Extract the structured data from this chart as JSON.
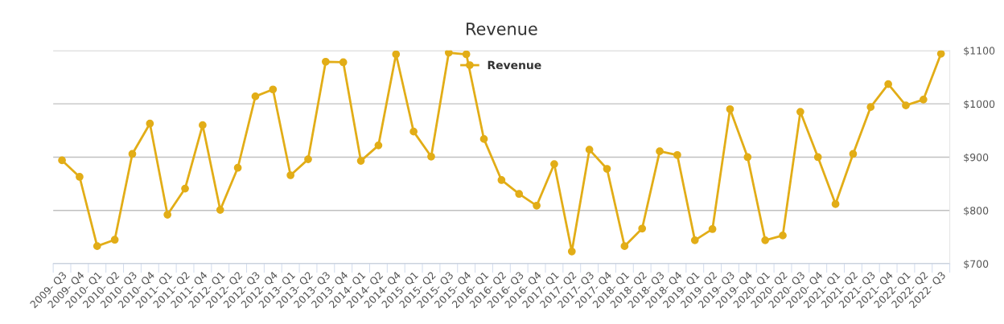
{
  "chart_data": {
    "type": "line",
    "title": "Revenue",
    "categories": [
      "2009- Q3",
      "2009- Q4",
      "2010- Q1",
      "2010- Q2",
      "2010- Q3",
      "2010- Q4",
      "2011- Q1",
      "2011- Q2",
      "2011- Q4",
      "2012- Q1",
      "2012- Q2",
      "2012- Q3",
      "2012- Q4",
      "2013- Q1",
      "2013- Q2",
      "2013- Q3",
      "2013- Q4",
      "2014- Q1",
      "2014- Q2",
      "2014- Q4",
      "2015- Q1",
      "2015- Q2",
      "2015- Q3",
      "2015- Q4",
      "2016- Q1",
      "2016- Q2",
      "2016- Q3",
      "2016- Q4",
      "2017- Q1",
      "2017- Q2",
      "2017- Q3",
      "2017- Q4",
      "2018- Q1",
      "2018- Q2",
      "2018- Q3",
      "2018- Q4",
      "2019- Q1",
      "2019- Q2",
      "2019- Q3",
      "2019- Q4",
      "2020- Q1",
      "2020- Q2",
      "2020- Q3",
      "2020- Q4",
      "2021- Q1",
      "2021- Q2",
      "2021- Q3",
      "2021- Q4",
      "2022- Q1",
      "2022- Q2",
      "2022- Q3"
    ],
    "series": [
      {
        "name": "Revenue",
        "color": "#e2ad17",
        "values": [
          894,
          863,
          733,
          745,
          906,
          963,
          792,
          841,
          960,
          801,
          880,
          1014,
          1027,
          866,
          896,
          1079,
          1078,
          893,
          922,
          1093,
          948,
          901,
          1096,
          1093,
          934,
          857,
          831,
          809,
          887,
          723,
          914,
          878,
          733,
          766,
          911,
          904,
          744,
          765,
          990,
          900,
          744,
          753,
          985,
          900,
          812,
          906,
          994,
          1037,
          997,
          1008,
          1094
        ]
      }
    ],
    "ylim": [
      700,
      1100
    ],
    "yticks": [
      {
        "value": 700,
        "label": "$700"
      },
      {
        "value": 800,
        "label": "$800"
      },
      {
        "value": 900,
        "label": "$900"
      },
      {
        "value": 1000,
        "label": "$1000"
      },
      {
        "value": 1100,
        "label": "$1100"
      }
    ],
    "grid": "y",
    "legend": "top",
    "marker": "circle",
    "line_style": "solid"
  }
}
